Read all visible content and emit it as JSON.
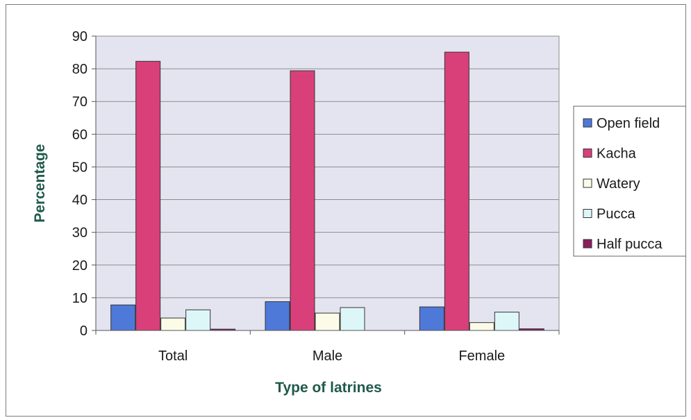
{
  "chart_data": {
    "type": "bar",
    "categories": [
      "Total",
      "Male",
      "Female"
    ],
    "series": [
      {
        "name": "Open field",
        "values": [
          7.8,
          8.8,
          7.2
        ],
        "color": "#4f79d9"
      },
      {
        "name": "Kacha",
        "values": [
          82.3,
          79.4,
          85.1
        ],
        "color": "#d9407a"
      },
      {
        "name": "Watery",
        "values": [
          3.8,
          5.3,
          2.4
        ],
        "color": "#fbfbe8"
      },
      {
        "name": "Pucca",
        "values": [
          6.3,
          7.0,
          5.6
        ],
        "color": "#ddf7f9"
      },
      {
        "name": "Half pucca",
        "values": [
          0.4,
          0.0,
          0.5
        ],
        "color": "#8c1e5c"
      }
    ],
    "xlabel": "Type of latrines",
    "ylabel": "Percentage",
    "ylim": [
      0,
      90
    ],
    "yticks": [
      "0",
      "10",
      "20",
      "30",
      "40",
      "50",
      "60",
      "70",
      "80",
      "90"
    ],
    "grid": true,
    "legend_position": "right",
    "plot_background": "#e4e4f0",
    "axis_title_color": "#1f5a4a"
  }
}
